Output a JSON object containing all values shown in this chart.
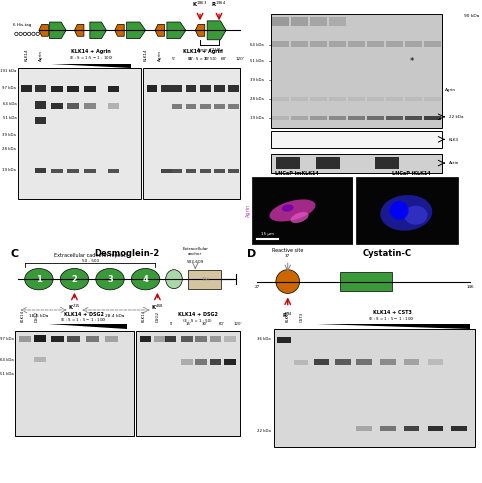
{
  "green_color": "#3a9a3a",
  "orange_color": "#cc6600",
  "light_green": "#a8d8a8",
  "tan_color": "#d4c5a0",
  "red_arrow_color": "#cc0000",
  "white": "#ffffff",
  "black": "#000000",
  "gel_bg_light": "#d8d8d8",
  "gel_bg_med": "#c0c0c0",
  "band_dark": "#111111",
  "band_mid": "#555555"
}
